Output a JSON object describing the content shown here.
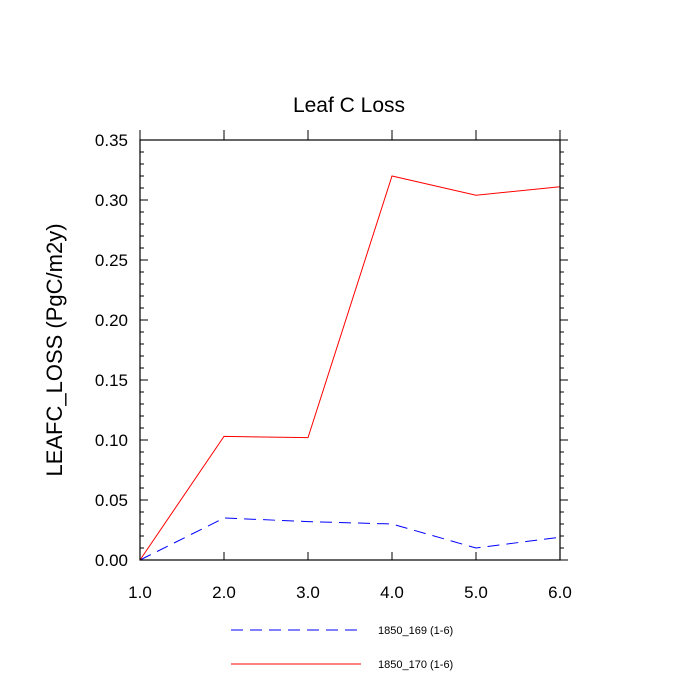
{
  "chart_data": {
    "type": "line",
    "title": "Leaf C Loss",
    "xlabel": "",
    "ylabel": "LEAFC_LOSS  (PgC/m2y)",
    "x": [
      1.0,
      2.0,
      3.0,
      4.0,
      5.0,
      6.0
    ],
    "xlim": [
      1.0,
      6.0
    ],
    "ylim": [
      0.0,
      0.35
    ],
    "x_ticks": [
      "1.0",
      "2.0",
      "3.0",
      "4.0",
      "5.0",
      "6.0"
    ],
    "y_ticks": [
      "0.00",
      "0.05",
      "0.10",
      "0.15",
      "0.20",
      "0.25",
      "0.30",
      "0.35"
    ],
    "grid": false,
    "legend_position": "bottom",
    "series": [
      {
        "name": "1850_169 (1-6)",
        "color": "#0000ff",
        "dash": "dashed",
        "values": [
          0.0,
          0.035,
          0.032,
          0.03,
          0.01,
          0.019
        ]
      },
      {
        "name": "1850_170 (1-6)",
        "color": "#ff0000",
        "dash": "solid",
        "values": [
          0.0,
          0.103,
          0.102,
          0.32,
          0.304,
          0.311
        ]
      }
    ]
  }
}
